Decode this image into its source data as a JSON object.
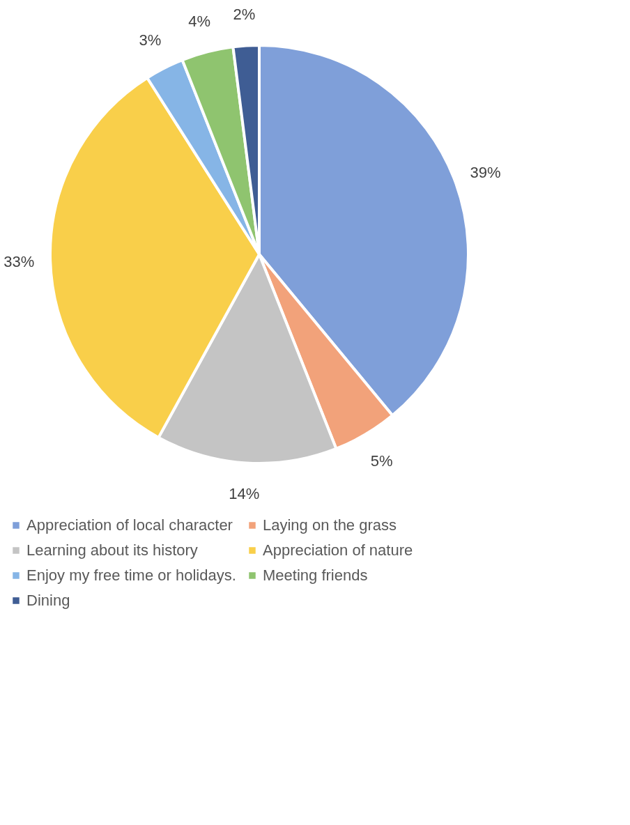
{
  "chart_data": {
    "type": "pie",
    "categories": [
      "Appreciation of local character",
      "Laying on the grass",
      "Learning about its history",
      "Appreciation of nature",
      "Enjoy my free time or holidays.",
      "Meeting friends",
      "Dining"
    ],
    "values": [
      39,
      5,
      14,
      33,
      3,
      4,
      2
    ],
    "value_labels": [
      "39%",
      "5%",
      "14%",
      "33%",
      "3%",
      "4%",
      "2%"
    ],
    "colors": [
      "#7f9fd9",
      "#f2a27a",
      "#c4c4c4",
      "#f9cf4a",
      "#86b5e6",
      "#8fc46f",
      "#3f5d94"
    ],
    "legend": "bottom"
  }
}
